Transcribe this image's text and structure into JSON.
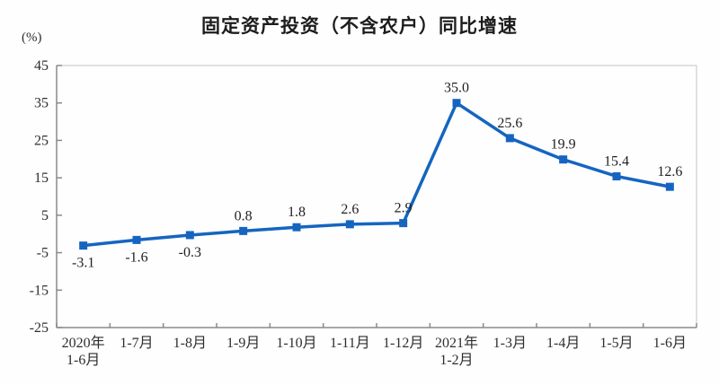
{
  "chart": {
    "title": "固定资产投资（不含农户）同比增速",
    "unit_label": "(%)"
  },
  "chart_data": {
    "type": "line",
    "title": "固定资产投资（不含农户）同比增速",
    "ylabel": "(%)",
    "xlabel": "",
    "categories": [
      "2020年\n1-6月",
      "1-7月",
      "1-8月",
      "1-9月",
      "1-10月",
      "1-11月",
      "1-12月",
      "2021年\n1-2月",
      "1-3月",
      "1-4月",
      "1-5月",
      "1-6月"
    ],
    "values": [
      -3.1,
      -1.6,
      -0.3,
      0.8,
      1.8,
      2.6,
      2.9,
      35.0,
      25.6,
      19.9,
      15.4,
      12.6
    ],
    "value_labels": [
      "-3.1",
      "-1.6",
      "-0.3",
      "0.8",
      "1.8",
      "2.6",
      "2.9",
      "35.0",
      "25.6",
      "19.9",
      "15.4",
      "12.6"
    ],
    "ylim": [
      -25,
      45
    ],
    "yticks": [
      45,
      35,
      25,
      15,
      5,
      -5,
      -15,
      -25
    ],
    "grid": false,
    "legend": false,
    "line_color": "#1565c0",
    "marker": "square",
    "axis_color": "#8a8a8a",
    "border_color": "#c4c4c4"
  }
}
